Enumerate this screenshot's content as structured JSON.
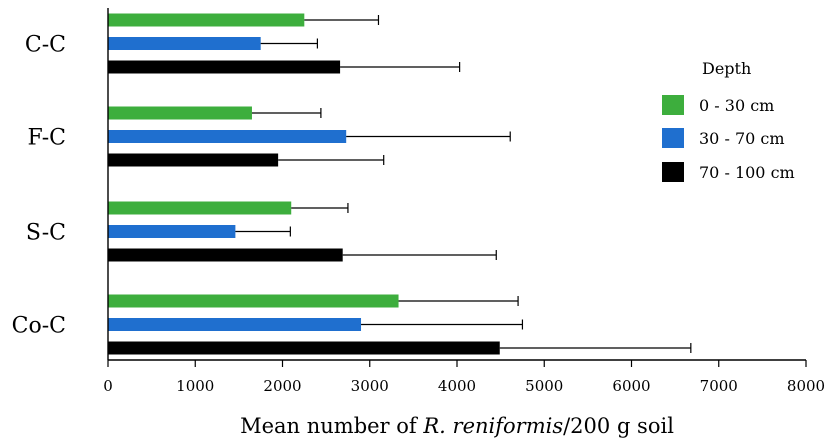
{
  "chart_data": {
    "type": "bar",
    "orientation": "horizontal",
    "categories": [
      "C-C",
      "F-C",
      "S-C",
      "Co-C"
    ],
    "series": [
      {
        "name": "0 - 30 cm",
        "color": "#3DAE3D",
        "values": [
          2250,
          1650,
          2100,
          3330
        ],
        "errors": [
          850,
          790,
          650,
          1370
        ]
      },
      {
        "name": "30 - 70 cm",
        "color": "#1F6FCF",
        "values": [
          1750,
          2730,
          1460,
          2900
        ],
        "errors": [
          650,
          1880,
          630,
          1850
        ]
      },
      {
        "name": "70 - 100 cm",
        "color": "#000000",
        "values": [
          2660,
          1950,
          2690,
          4490
        ],
        "errors": [
          1370,
          1210,
          1760,
          2190
        ]
      }
    ],
    "xlim": [
      0,
      8000
    ],
    "xticks": [
      "0",
      "1000",
      "2000",
      "3000",
      "4000",
      "5000",
      "6000",
      "7000",
      "8000"
    ],
    "xlabel_parts": [
      "Mean number of ",
      "R. reniformis",
      "/200 g soil"
    ],
    "legend_title": "Depth",
    "legend_position": "right",
    "grid": false
  }
}
